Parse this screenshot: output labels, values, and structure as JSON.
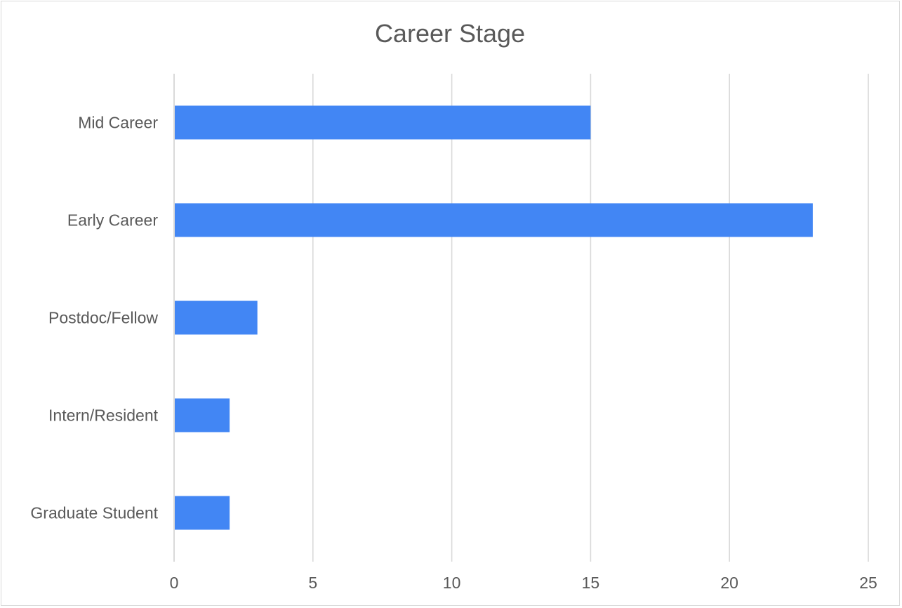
{
  "chart_data": {
    "type": "bar",
    "orientation": "horizontal",
    "title": "Career Stage",
    "xlabel": "",
    "ylabel": "",
    "categories": [
      "Mid Career",
      "Early Career",
      "Postdoc/Fellow",
      "Intern/Resident",
      "Graduate Student"
    ],
    "values": [
      15,
      23,
      3,
      2,
      2
    ],
    "xlim": [
      0,
      25
    ],
    "xticks": [
      0,
      5,
      10,
      15,
      20,
      25
    ],
    "grid": "vertical",
    "legend": "none",
    "colors": {
      "bar": "#4286f4",
      "grid": "#d9d9d9",
      "text": "#595959"
    }
  }
}
